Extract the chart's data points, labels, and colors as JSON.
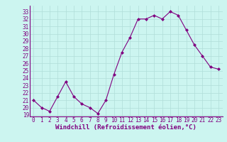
{
  "x": [
    0,
    1,
    2,
    3,
    4,
    5,
    6,
    7,
    8,
    9,
    10,
    11,
    12,
    13,
    14,
    15,
    16,
    17,
    18,
    19,
    20,
    21,
    22,
    23
  ],
  "y": [
    21.0,
    20.0,
    19.5,
    21.5,
    23.5,
    21.5,
    20.5,
    20.0,
    19.2,
    21.0,
    24.5,
    27.5,
    29.5,
    32.0,
    32.0,
    32.5,
    32.0,
    33.0,
    32.5,
    30.5,
    28.5,
    27.0,
    25.5,
    25.2
  ],
  "line_color": "#800080",
  "marker": "D",
  "marker_size": 2.0,
  "bg_color": "#ccf5f0",
  "grid_color": "#b0ddd8",
  "xlabel": "Windchill (Refroidissement éolien,°C)",
  "xlim": [
    -0.5,
    23.5
  ],
  "ylim": [
    18.8,
    33.8
  ],
  "yticks": [
    19,
    20,
    21,
    22,
    23,
    24,
    25,
    26,
    27,
    28,
    29,
    30,
    31,
    32,
    33
  ],
  "xticks": [
    0,
    1,
    2,
    3,
    4,
    5,
    6,
    7,
    8,
    9,
    10,
    11,
    12,
    13,
    14,
    15,
    16,
    17,
    18,
    19,
    20,
    21,
    22,
    23
  ],
  "label_color": "#800080",
  "tick_fontsize": 5.5,
  "xlabel_fontsize": 6.5
}
